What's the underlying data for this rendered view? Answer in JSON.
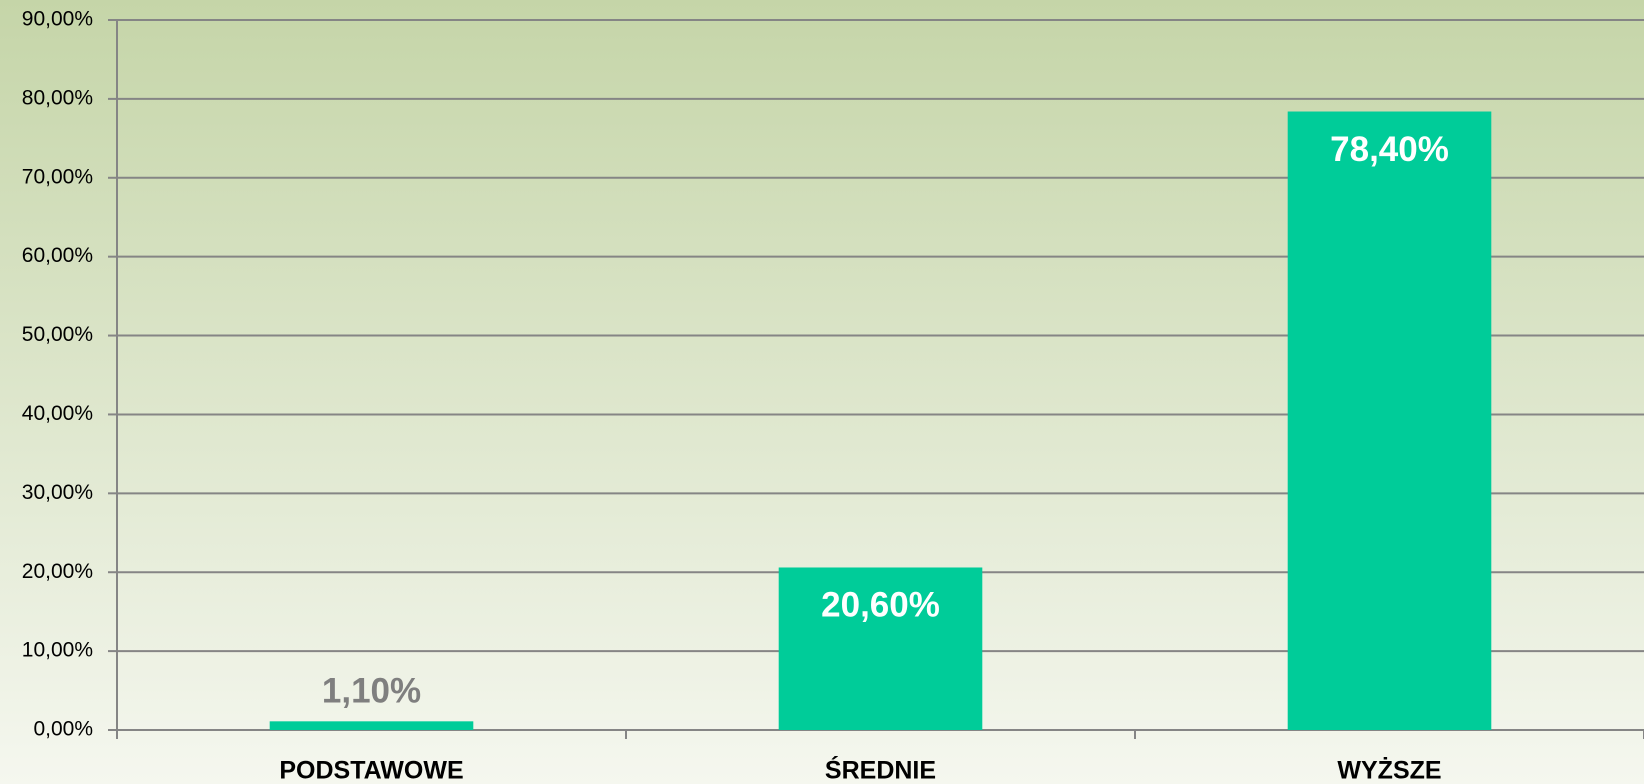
{
  "chart_data": {
    "type": "bar",
    "categories": [
      "PODSTAWOWE",
      "ŚREDNIE",
      "WYŻSZE"
    ],
    "values": [
      1.1,
      20.6,
      78.4
    ],
    "value_labels": [
      "1,10%",
      "20,60%",
      "78,40%"
    ],
    "color": "#00cc99",
    "ylim": [
      0,
      90
    ],
    "yticks": [
      {
        "value": 0,
        "label": "0,00%"
      },
      {
        "value": 10,
        "label": "10,00%"
      },
      {
        "value": 20,
        "label": "20,00%"
      },
      {
        "value": 30,
        "label": "30,00%"
      },
      {
        "value": 40,
        "label": "40,00%"
      },
      {
        "value": 50,
        "label": "50,00%"
      },
      {
        "value": 60,
        "label": "60,00%"
      },
      {
        "value": 70,
        "label": "70,00%"
      },
      {
        "value": 80,
        "label": "80,00%"
      },
      {
        "value": 90,
        "label": "90,00%"
      }
    ],
    "grid": true
  }
}
